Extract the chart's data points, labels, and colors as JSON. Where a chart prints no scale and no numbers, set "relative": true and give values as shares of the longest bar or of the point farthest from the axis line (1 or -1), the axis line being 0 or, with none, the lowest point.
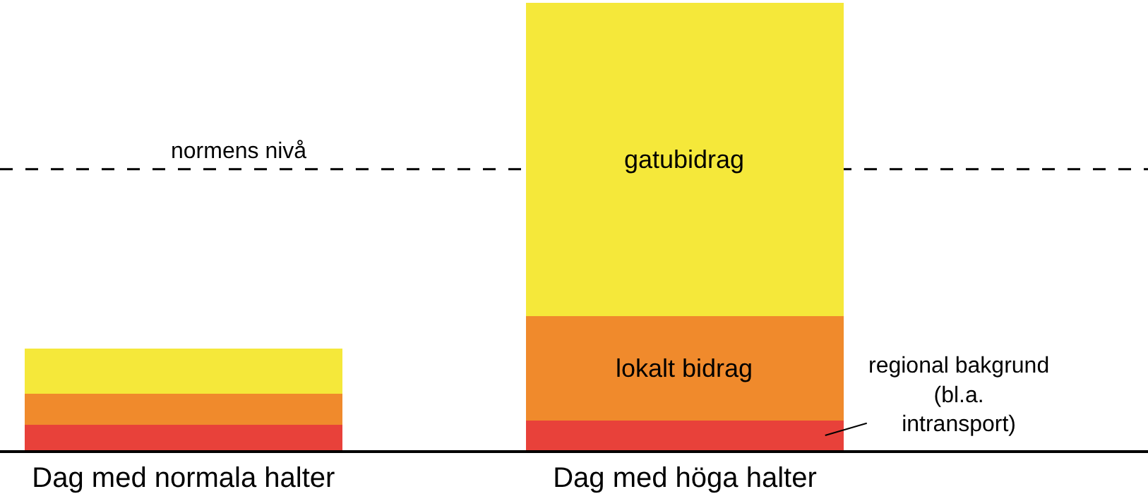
{
  "chart_data": {
    "type": "bar",
    "stacked": true,
    "relative": true,
    "legend": false,
    "grid": false,
    "categories": [
      "Dag med normala halter",
      "Dag med höga halter"
    ],
    "series": [
      {
        "name": "regional bakgrund (bl.a. intransport)",
        "color": "#e8413a",
        "values": [
          0.057,
          0.066
        ]
      },
      {
        "name": "lokalt bidrag",
        "color": "#f08a2c",
        "values": [
          0.069,
          0.233
        ]
      },
      {
        "name": "gatubidrag",
        "color": "#f5e83a",
        "values": [
          0.101,
          0.701
        ]
      }
    ],
    "ref_lines": [
      {
        "axis": "y",
        "value": 0.628,
        "label": "normens nivå",
        "line_style": "dashed",
        "color": "#000000"
      }
    ]
  }
}
